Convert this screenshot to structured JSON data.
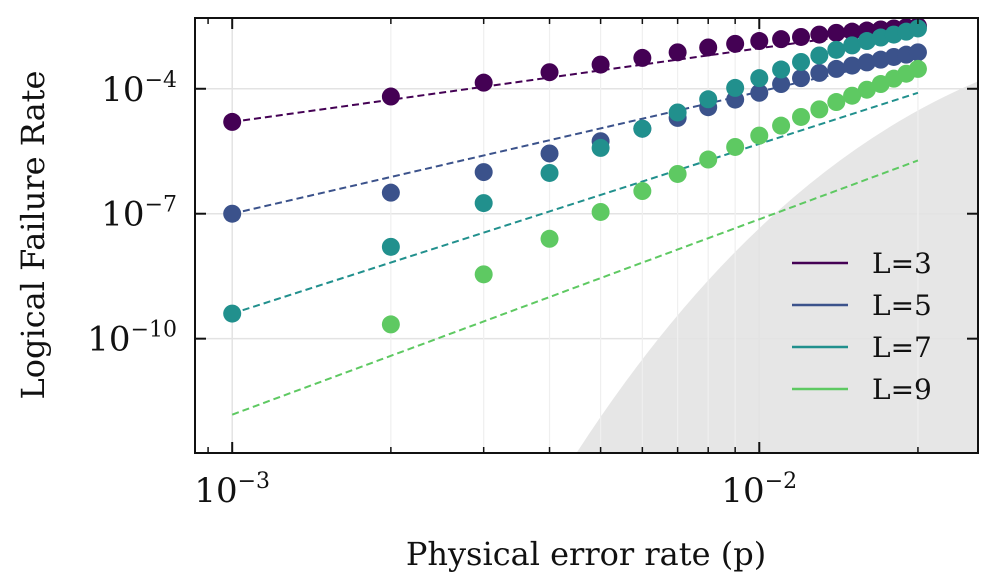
{
  "chart_data": {
    "type": "scatter",
    "title": "",
    "xlabel": "Physical error rate (p)",
    "ylabel": "Logical Failure Rate",
    "xscale": "log",
    "yscale": "log",
    "xlim": [
      0.00085,
      0.026
    ],
    "ylim": [
      1.8e-13,
      0.005
    ],
    "xticks": [
      {
        "value": 0.001,
        "base": "10",
        "exp": "−3"
      },
      {
        "value": 0.01,
        "base": "10",
        "exp": "−2"
      }
    ],
    "yticks": [
      {
        "value": 0.0001,
        "base": "10",
        "exp": "−4"
      },
      {
        "value": 1e-07,
        "base": "10",
        "exp": "−7"
      },
      {
        "value": 1e-10,
        "base": "10",
        "exp": "−10"
      }
    ],
    "grid": true,
    "legend_position": "lower-right",
    "shaded_region": {
      "x_start": 0.0045,
      "x_end": 0.026,
      "y_at_end": 0.00015,
      "color": "#e6e6e6"
    },
    "series": [
      {
        "name": "L=3",
        "color": "#440154",
        "x": [
          0.001,
          0.002,
          0.003,
          0.004,
          0.005,
          0.006,
          0.007,
          0.008,
          0.009,
          0.01,
          0.011,
          0.012,
          0.013,
          0.014,
          0.015,
          0.016,
          0.017,
          0.018,
          0.019,
          0.02
        ],
        "y": [
          1.6e-05,
          6.5e-05,
          0.00014,
          0.00025,
          0.00038,
          0.00055,
          0.00075,
          0.00098,
          0.0012,
          0.0014,
          0.00155,
          0.00175,
          0.002,
          0.0022,
          0.00235,
          0.0025,
          0.00265,
          0.0028,
          0.003,
          0.0032
        ],
        "fit": {
          "x": [
            0.001,
            0.02
          ],
          "y": [
            1.6e-05,
            0.0032
          ]
        }
      },
      {
        "name": "L=5",
        "color": "#3b528b",
        "x": [
          0.001,
          0.002,
          0.003,
          0.004,
          0.005,
          0.006,
          0.007,
          0.008,
          0.009,
          0.01,
          0.011,
          0.012,
          0.013,
          0.014,
          0.015,
          0.016,
          0.017,
          0.018,
          0.019,
          0.02
        ],
        "y": [
          1e-07,
          3.2e-07,
          1e-06,
          2.8e-06,
          5.5e-06,
          1.1e-05,
          2e-05,
          3.6e-05,
          5.5e-05,
          8e-05,
          0.00013,
          0.00018,
          0.00024,
          0.0003,
          0.00036,
          0.00043,
          0.0005,
          0.00058,
          0.00066,
          0.00075
        ],
        "fit": {
          "x": [
            0.001,
            0.02
          ],
          "y": [
            1e-07,
            0.00065
          ]
        }
      },
      {
        "name": "L=7",
        "color": "#21908d",
        "x": [
          0.001,
          0.002,
          0.003,
          0.004,
          0.005,
          0.006,
          0.007,
          0.008,
          0.009,
          0.01,
          0.011,
          0.012,
          0.013,
          0.014,
          0.015,
          0.016,
          0.017,
          0.018,
          0.019,
          0.02
        ],
        "y": [
          4e-10,
          1.6e-08,
          1.8e-07,
          9.5e-07,
          3.8e-06,
          1.1e-05,
          2.7e-05,
          5.6e-05,
          0.000105,
          0.00018,
          0.00029,
          0.00044,
          0.00063,
          0.00086,
          0.0011,
          0.0014,
          0.0017,
          0.002,
          0.00235,
          0.0028
        ],
        "fit": {
          "x": [
            0.001,
            0.02
          ],
          "y": [
            4e-10,
            8e-05
          ]
        }
      },
      {
        "name": "L=9",
        "color": "#5ec962",
        "x": [
          0.002,
          0.003,
          0.004,
          0.005,
          0.006,
          0.007,
          0.008,
          0.009,
          0.01,
          0.011,
          0.012,
          0.013,
          0.014,
          0.015,
          0.016,
          0.017,
          0.018,
          0.019,
          0.02
        ],
        "y": [
          2.2e-10,
          3.5e-09,
          2.5e-08,
          1.1e-07,
          3.5e-07,
          9e-07,
          2e-06,
          4e-06,
          7.5e-06,
          1.3e-05,
          2.1e-05,
          3.2e-05,
          4.8e-05,
          6.8e-05,
          9.5e-05,
          0.00013,
          0.000175,
          0.00023,
          0.0003
        ],
        "fit": {
          "x": [
            0.001,
            0.02
          ],
          "y": [
            1.5e-12,
            1.9e-06
          ]
        }
      }
    ]
  }
}
